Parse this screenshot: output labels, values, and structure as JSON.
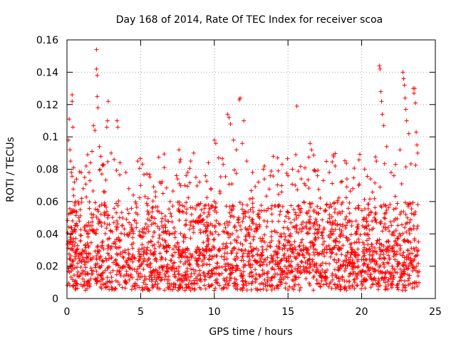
{
  "chart_data": {
    "type": "scatter",
    "title": "Day 168 of 2014, Rate Of TEC Index for receiver scoa",
    "xlabel": "GPS time / hours",
    "ylabel": "ROTI / TECUs",
    "xlim": [
      0,
      25
    ],
    "ylim": [
      0,
      0.16
    ],
    "xticks": [
      0,
      5,
      10,
      15,
      20,
      25
    ],
    "xtick_labels": [
      "0",
      "5",
      "10",
      "15",
      "20",
      "25"
    ],
    "yticks": [
      0,
      0.02,
      0.04,
      0.06,
      0.08,
      0.1,
      0.12,
      0.14,
      0.16
    ],
    "ytick_labels": [
      "0",
      "0.02",
      "0.04",
      "0.06",
      "0.08",
      "0.1",
      "0.12",
      "0.14",
      "0.16"
    ],
    "grid": true,
    "marker": "+",
    "color": "#ff0000",
    "series": [
      {
        "name": "ROTI",
        "points": [
          [
            0.1,
            0.098
          ],
          [
            0.15,
            0.111
          ],
          [
            0.2,
            0.092
          ],
          [
            0.25,
            0.085
          ],
          [
            0.3,
            0.078
          ],
          [
            0.35,
            0.122
          ],
          [
            0.35,
            0.126
          ],
          [
            0.4,
            0.106
          ],
          [
            0.45,
            0.081
          ],
          [
            0.5,
            0.072
          ],
          [
            0.6,
            0.06
          ],
          [
            0.7,
            0.045
          ],
          [
            0.8,
            0.05
          ],
          [
            0.9,
            0.055
          ],
          [
            1.0,
            0.062
          ],
          [
            1.1,
            0.068
          ],
          [
            1.2,
            0.075
          ],
          [
            1.3,
            0.082
          ],
          [
            1.4,
            0.089
          ],
          [
            1.5,
            0.078
          ],
          [
            1.6,
            0.084
          ],
          [
            1.7,
            0.091
          ],
          [
            1.8,
            0.107
          ],
          [
            1.9,
            0.104
          ],
          [
            2.0,
            0.154
          ],
          [
            2.0,
            0.142
          ],
          [
            2.05,
            0.138
          ],
          [
            2.05,
            0.125
          ],
          [
            2.1,
            0.118
          ],
          [
            2.2,
            0.094
          ],
          [
            2.3,
            0.088
          ],
          [
            2.5,
            0.083
          ],
          [
            2.7,
            0.106
          ],
          [
            2.75,
            0.11
          ],
          [
            2.8,
            0.122
          ],
          [
            3.0,
            0.09
          ],
          [
            3.2,
            0.086
          ],
          [
            3.4,
            0.11
          ],
          [
            3.45,
            0.106
          ],
          [
            3.6,
            0.084
          ],
          [
            4.0,
            0.078
          ],
          [
            4.2,
            0.068
          ],
          [
            4.5,
            0.064
          ],
          [
            4.8,
            0.085
          ],
          [
            5.0,
            0.07
          ],
          [
            5.5,
            0.062
          ],
          [
            6.0,
            0.066
          ],
          [
            6.3,
            0.072
          ],
          [
            6.6,
            0.081
          ],
          [
            7.0,
            0.06
          ],
          [
            7.5,
            0.074
          ],
          [
            7.6,
            0.092
          ],
          [
            7.7,
            0.086
          ],
          [
            8.0,
            0.07
          ],
          [
            8.2,
            0.078
          ],
          [
            8.4,
            0.085
          ],
          [
            8.6,
            0.09
          ],
          [
            9.0,
            0.072
          ],
          [
            9.4,
            0.076
          ],
          [
            9.6,
            0.084
          ],
          [
            10.0,
            0.098
          ],
          [
            10.1,
            0.096
          ],
          [
            10.3,
            0.087
          ],
          [
            10.6,
            0.083
          ],
          [
            10.9,
            0.114
          ],
          [
            11.0,
            0.112
          ],
          [
            11.1,
            0.108
          ],
          [
            11.3,
            0.098
          ],
          [
            11.5,
            0.092
          ],
          [
            11.7,
            0.123
          ],
          [
            11.75,
            0.124
          ],
          [
            11.9,
            0.096
          ],
          [
            12.0,
            0.11
          ],
          [
            12.2,
            0.085
          ],
          [
            12.6,
            0.078
          ],
          [
            13.0,
            0.072
          ],
          [
            13.4,
            0.082
          ],
          [
            13.8,
            0.076
          ],
          [
            14.0,
            0.088
          ],
          [
            14.3,
            0.087
          ],
          [
            14.6,
            0.083
          ],
          [
            15.0,
            0.076
          ],
          [
            15.3,
            0.08
          ],
          [
            15.6,
            0.119
          ],
          [
            15.9,
            0.074
          ],
          [
            16.2,
            0.07
          ],
          [
            16.5,
            0.096
          ],
          [
            16.6,
            0.092
          ],
          [
            17.0,
            0.076
          ],
          [
            17.4,
            0.073
          ],
          [
            17.8,
            0.078
          ],
          [
            18.2,
            0.082
          ],
          [
            18.6,
            0.072
          ],
          [
            19.0,
            0.074
          ],
          [
            19.4,
            0.068
          ],
          [
            19.8,
            0.07
          ],
          [
            20.2,
            0.08
          ],
          [
            20.6,
            0.074
          ],
          [
            21.0,
            0.085
          ],
          [
            21.2,
            0.144
          ],
          [
            21.25,
            0.142
          ],
          [
            21.3,
            0.128
          ],
          [
            21.35,
            0.122
          ],
          [
            21.4,
            0.114
          ],
          [
            21.5,
            0.107
          ],
          [
            21.7,
            0.094
          ],
          [
            22.0,
            0.078
          ],
          [
            22.3,
            0.083
          ],
          [
            22.6,
            0.092
          ],
          [
            22.8,
            0.14
          ],
          [
            22.85,
            0.136
          ],
          [
            22.9,
            0.132
          ],
          [
            22.95,
            0.124
          ],
          [
            23.0,
            0.117
          ],
          [
            23.05,
            0.11
          ],
          [
            23.2,
            0.102
          ],
          [
            23.5,
            0.13
          ],
          [
            23.55,
            0.127
          ],
          [
            23.6,
            0.13
          ],
          [
            23.65,
            0.121
          ],
          [
            23.7,
            0.103
          ],
          [
            23.75,
            0.095
          ],
          [
            23.8,
            0.09
          ]
        ]
      }
    ],
    "background_noise": {
      "description_values": {
        "x_range": [
          0,
          23.9
        ],
        "baseline_y_range": [
          0.005,
          0.03
        ],
        "burst_y_max_typical": 0.06,
        "count": 2600
      }
    }
  }
}
